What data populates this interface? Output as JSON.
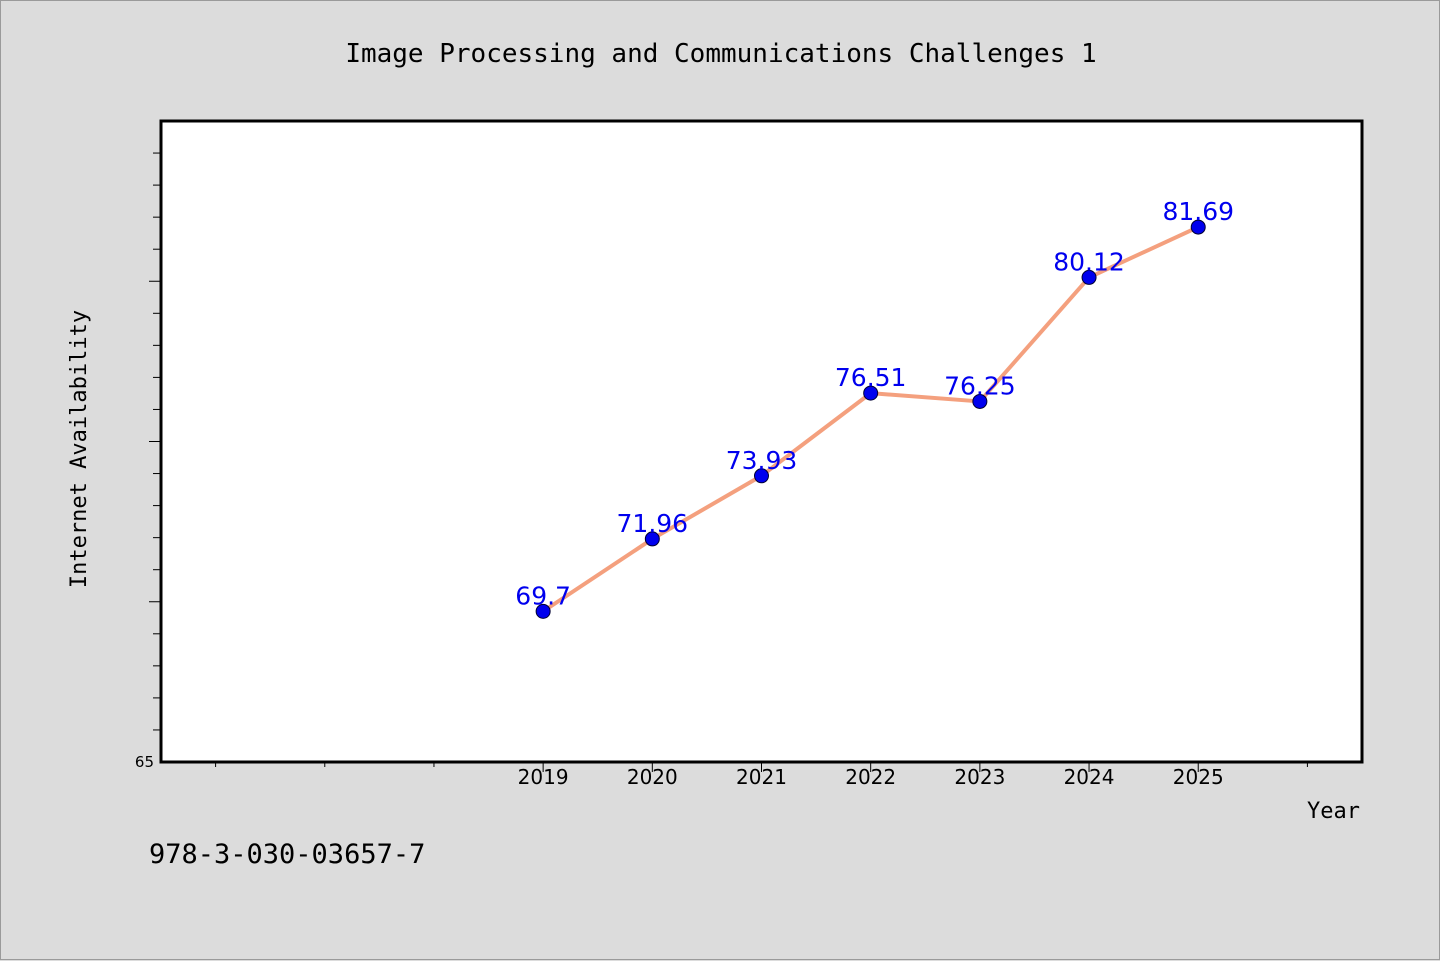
{
  "chart_data": {
    "type": "line",
    "title": "Image Processing and Communications Challenges 1",
    "xlabel": "Year",
    "ylabel": "Internet Availability",
    "x": [
      2019,
      2020,
      2021,
      2022,
      2023,
      2024,
      2025
    ],
    "x_tick_labels": [
      "2019",
      "2020",
      "2021",
      "2022",
      "2023",
      "2024",
      "2025"
    ],
    "xlim": [
      2015.5,
      2026.5
    ],
    "ylim": [
      65,
      85
    ],
    "y_tick_labels": [
      "65"
    ],
    "series": [
      {
        "values": [
          69.7,
          71.96,
          73.93,
          76.51,
          76.25,
          80.12,
          81.69
        ],
        "data_labels": [
          "69.7",
          "71.96",
          "73.93",
          "76.51",
          "76.25",
          "80.12",
          "81.69"
        ],
        "line_color": "#f4a07e",
        "marker_color": "#0000ee"
      }
    ],
    "grid": false,
    "legend": "none"
  },
  "footer": {
    "identifier": "978-3-030-03657-7"
  }
}
